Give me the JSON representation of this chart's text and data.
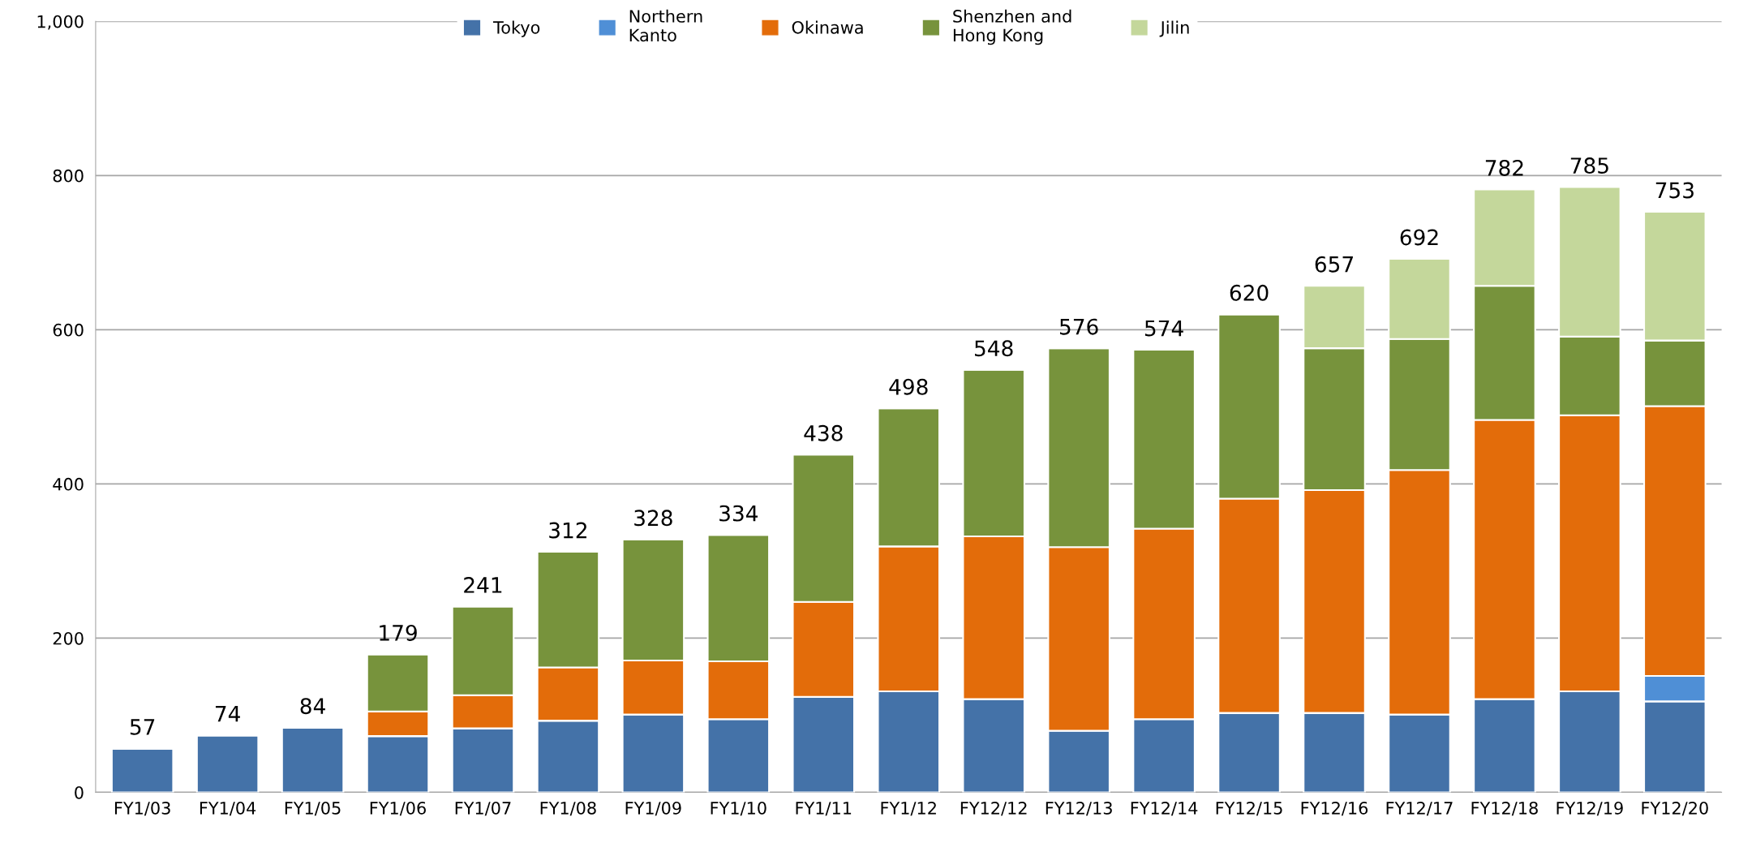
{
  "chart_data": {
    "type": "bar",
    "stacked": true,
    "categories": [
      "FY1/03",
      "FY1/04",
      "FY1/05",
      "FY1/06",
      "FY1/07",
      "FY1/08",
      "FY1/09",
      "FY1/10",
      "FY1/11",
      "FY1/12",
      "FY12/12",
      "FY12/13",
      "FY12/14",
      "FY12/15",
      "FY12/16",
      "FY12/17",
      "FY12/18",
      "FY12/19",
      "FY12/20"
    ],
    "series": [
      {
        "name": "Tokyo",
        "color": "#4472a8",
        "values": [
          57,
          74,
          84,
          73,
          83,
          93,
          101,
          95,
          124,
          131,
          121,
          80,
          95,
          103,
          103,
          101,
          121,
          131,
          118
        ]
      },
      {
        "name": "Northern\nKanto",
        "color": "#4f8fd6",
        "values": [
          null,
          null,
          null,
          null,
          null,
          null,
          null,
          null,
          null,
          null,
          null,
          null,
          null,
          null,
          null,
          null,
          null,
          null,
          33
        ]
      },
      {
        "name": "Okinawa",
        "color": "#e36c0a",
        "values": [
          null,
          null,
          null,
          32,
          43,
          69,
          70,
          75,
          123,
          188,
          211,
          238,
          247,
          278,
          289,
          317,
          362,
          358,
          350
        ]
      },
      {
        "name": "Shenzhen and\nHong Kong",
        "color": "#77933c",
        "values": [
          null,
          null,
          null,
          74,
          115,
          150,
          157,
          164,
          191,
          179,
          216,
          258,
          232,
          239,
          184,
          170,
          174,
          102,
          85
        ]
      },
      {
        "name": "Jilin",
        "color": "#c4d79b",
        "values": [
          null,
          null,
          null,
          null,
          null,
          null,
          null,
          null,
          null,
          null,
          null,
          null,
          null,
          null,
          81,
          104,
          125,
          194,
          167
        ]
      }
    ],
    "totals": [
      "57",
      "74",
      "84",
      "179",
      "241",
      "312",
      "328",
      "334",
      "438",
      "498",
      "548",
      "576",
      "574",
      "620",
      "657",
      "692",
      "782",
      "785",
      "753"
    ],
    "ylim": [
      0,
      1000
    ],
    "yticks": [
      0,
      200,
      400,
      600,
      800,
      {
        "value": 1000,
        "label": "1,000"
      }
    ],
    "grid": "y",
    "legend": "top"
  }
}
